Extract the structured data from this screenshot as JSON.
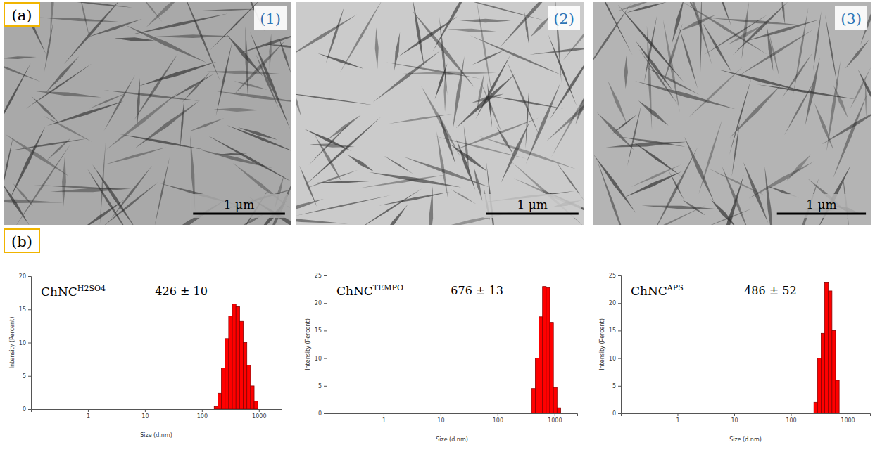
{
  "figure": {
    "panel_a": {
      "letter": "(a)",
      "images": [
        {
          "label": "(1)",
          "scale_bar": "1 μm"
        },
        {
          "label": "(2)",
          "scale_bar": "1 μm"
        },
        {
          "label": "(3)",
          "scale_bar": "1 μm"
        }
      ]
    },
    "panel_b": {
      "letter": "(b)"
    }
  },
  "chart_data": [
    {
      "type": "histogram",
      "title": "ChNC",
      "title_superscript": "H2SO4",
      "annotations": [
        "426 ± 10"
      ],
      "x_label": "Size (d.nm)",
      "y_label": "Intensity (Percent)",
      "bins": [
        164.2,
        190.1,
        220.2,
        255.0,
        295.3,
        342.0,
        396.1,
        458.7,
        531.2,
        615.1,
        712.4,
        825.0,
        955.4
      ],
      "values": [
        0.4,
        2.4,
        6.2,
        10.6,
        14.0,
        15.8,
        15.4,
        13.2,
        10.0,
        6.6,
        3.5,
        1.2
      ],
      "color": "#ff0000",
      "log": "x",
      "grid": false,
      "xlim": [
        0.1,
        2500
      ],
      "xticks": [
        1,
        10,
        100,
        1000
      ],
      "ylim": [
        0,
        20
      ],
      "yticks": [
        0,
        5,
        10,
        15,
        20
      ]
    },
    {
      "type": "histogram",
      "title": "ChNC",
      "title_superscript": "TEMPO",
      "annotations": [
        "676 ± 13"
      ],
      "x_label": "Size (d.nm)",
      "y_label": "Intensity (Percent)",
      "bins": [
        396.1,
        458.7,
        531.2,
        615.1,
        712.4,
        825.0,
        955.4,
        1106,
        1281
      ],
      "values": [
        4.5,
        10.0,
        17.5,
        23.0,
        22.8,
        16.5,
        4.7,
        1.0
      ],
      "color": "#ff0000",
      "log": "x",
      "grid": false,
      "xlim": [
        0.1,
        2500
      ],
      "xticks": [
        1,
        10,
        100,
        1000
      ],
      "ylim": [
        0,
        25
      ],
      "yticks": [
        0,
        5,
        10,
        15,
        20,
        25
      ]
    },
    {
      "type": "histogram",
      "title": "ChNC",
      "title_superscript": "APS",
      "annotations": [
        "486 ± 52"
      ],
      "x_label": "Size (d.nm)",
      "y_label": "Intensity (Percent)",
      "bins": [
        255.0,
        295.3,
        342.0,
        396.1,
        458.7,
        531.2,
        615.1,
        712.4
      ],
      "values": [
        2.0,
        10.0,
        14.5,
        23.8,
        22.2,
        15.0,
        6.0
      ],
      "color": "#ff0000",
      "log": "x",
      "grid": false,
      "xlim": [
        0.1,
        2500
      ],
      "xticks": [
        1,
        10,
        100,
        1000
      ],
      "ylim": [
        0,
        25
      ],
      "yticks": [
        0,
        5,
        10,
        15,
        20,
        25
      ]
    }
  ]
}
